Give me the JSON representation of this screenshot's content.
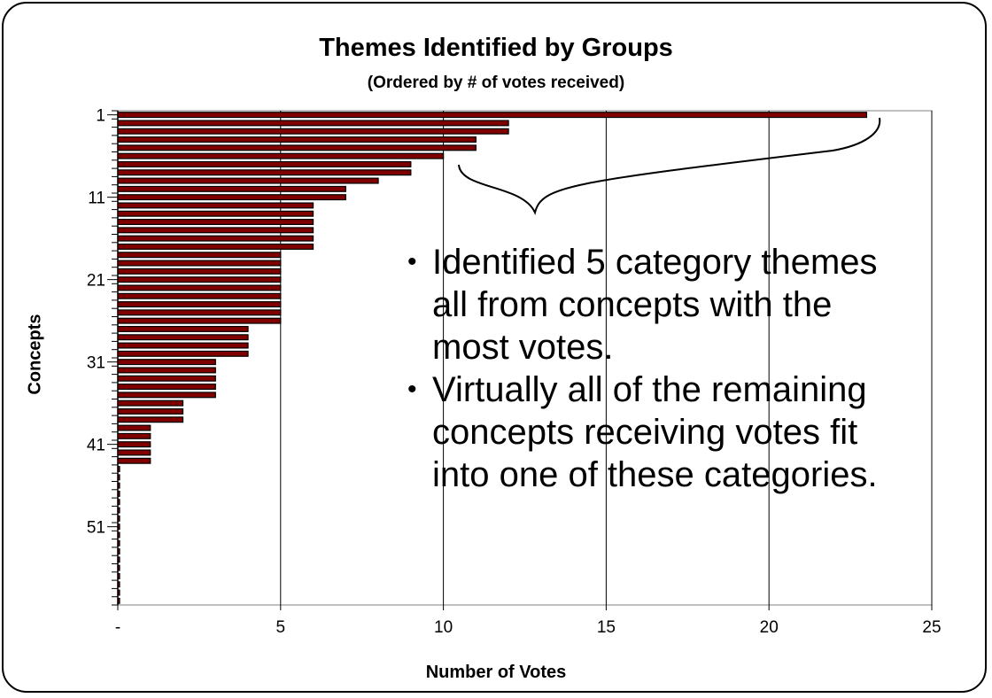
{
  "chart_data": {
    "type": "bar",
    "orientation": "horizontal",
    "title": "Themes Identified by Groups",
    "subtitle": "(Ordered by # of votes received)",
    "xlabel": "Number of Votes",
    "ylabel": "Concepts",
    "xlim": [
      0,
      25
    ],
    "x_tick_labels": [
      "-",
      "5",
      "10",
      "15",
      "20",
      "25"
    ],
    "y_tick_labels": [
      "1",
      "11",
      "21",
      "31",
      "41",
      "51"
    ],
    "grid": "vertical",
    "bar_color": "#800000",
    "categories": [
      1,
      2,
      3,
      4,
      5,
      6,
      7,
      8,
      9,
      10,
      11,
      12,
      13,
      14,
      15,
      16,
      17,
      18,
      19,
      20,
      21,
      22,
      23,
      24,
      25,
      26,
      27,
      28,
      29,
      30,
      31,
      32,
      33,
      34,
      35,
      36,
      37,
      38,
      39,
      40,
      41,
      42,
      43,
      44,
      45,
      46,
      47,
      48,
      49,
      50,
      51,
      52,
      53,
      54,
      55,
      56,
      57,
      58,
      59,
      60
    ],
    "values": [
      23,
      12,
      12,
      11,
      11,
      10,
      9,
      9,
      8,
      7,
      7,
      6,
      6,
      6,
      6,
      6,
      6,
      5,
      5,
      5,
      5,
      5,
      5,
      5,
      5,
      5,
      4,
      4,
      4,
      4,
      3,
      3,
      3,
      3,
      3,
      2,
      2,
      2,
      1,
      1,
      1,
      1,
      1,
      0,
      0,
      0,
      0,
      0,
      0,
      0,
      0,
      0,
      0,
      0,
      0,
      0,
      0,
      0,
      0,
      0
    ]
  },
  "annotation": {
    "bullets": [
      "Identified 5 category themes all from concepts with the most votes.",
      "Virtually all of the remaining concepts receiving votes fit into one of these categories."
    ]
  }
}
